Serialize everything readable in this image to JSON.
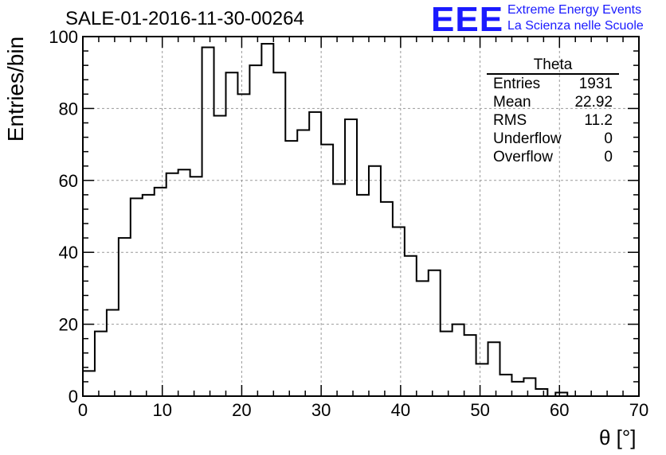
{
  "title": "SALE-01-2016-11-30-00264",
  "logo": {
    "mark": "EEE",
    "line1": "Extreme Energy Events",
    "line2": "La Scienza nelle Scuole",
    "color": "#1a1aff"
  },
  "stats_box": {
    "title": "Theta",
    "rows": [
      {
        "label": "Entries",
        "value": "1931"
      },
      {
        "label": "Mean",
        "value": "22.92"
      },
      {
        "label": "RMS",
        "value": "11.2"
      },
      {
        "label": "Underflow",
        "value": "0"
      },
      {
        "label": "Overflow",
        "value": "0"
      }
    ]
  },
  "chart_data": {
    "type": "bar",
    "style": "step-histogram",
    "title": "SALE-01-2016-11-30-00264",
    "xlabel": "θ [°]",
    "ylabel": "Entries/bin",
    "xlim": [
      0,
      70
    ],
    "ylim": [
      0,
      100
    ],
    "grid": true,
    "bin_width": 1.5,
    "bin_edges_start": 0,
    "values": [
      7,
      18,
      24,
      44,
      55,
      56,
      58,
      62,
      63,
      61,
      97,
      78,
      90,
      84,
      92,
      98,
      90,
      71,
      74,
      79,
      70,
      59,
      77,
      56,
      64,
      54,
      47,
      39,
      32,
      35,
      18,
      20,
      17,
      9,
      15,
      6,
      4,
      5,
      2,
      0,
      0,
      0,
      0,
      0,
      0,
      0,
      0
    ],
    "x_ticks": [
      0,
      10,
      20,
      30,
      40,
      50,
      60,
      70
    ],
    "y_ticks": [
      0,
      20,
      40,
      60,
      80,
      100
    ],
    "tail_bins": [
      {
        "x": 59.5,
        "value": 1
      }
    ]
  }
}
